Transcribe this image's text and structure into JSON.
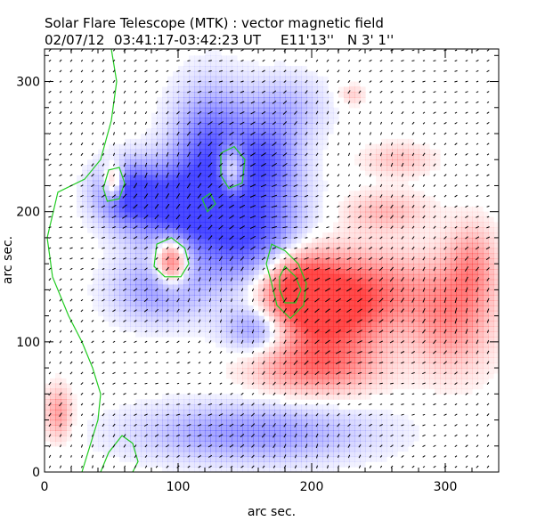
{
  "chart_data": {
    "type": "heatmap",
    "title": "Solar Flare Telescope (MTK) : vector magnetic field",
    "subtitle": {
      "date": "02/07/12",
      "time_range": "03:41:17-03:42:23 UT",
      "longitude": "E11'13''",
      "latitude": "N 3' 1''"
    },
    "xlabel": "arc sec.",
    "ylabel": "arc sec.",
    "xlim": [
      0,
      340
    ],
    "ylim": [
      0,
      325
    ],
    "x_ticks": [
      0,
      100,
      200,
      300
    ],
    "y_ticks": [
      0,
      100,
      200,
      300
    ],
    "x_minor_step": 20,
    "y_minor_step": 20,
    "grid": false,
    "colors": {
      "positive_polarity": "#ff2a2a",
      "negative_polarity": "#2a2aff",
      "contour": "#22cc22",
      "vector": "#000000",
      "background": "#ffffff"
    },
    "regions": [
      {
        "polarity": "negative",
        "cx": 150,
        "cy": 185,
        "rx": 40,
        "ry": 40,
        "strength": 1.0
      },
      {
        "polarity": "negative",
        "cx": 95,
        "cy": 205,
        "rx": 35,
        "ry": 30,
        "strength": 0.95
      },
      {
        "polarity": "negative",
        "cx": 125,
        "cy": 250,
        "rx": 28,
        "ry": 45,
        "strength": 0.8
      },
      {
        "polarity": "negative",
        "cx": 60,
        "cy": 215,
        "rx": 22,
        "ry": 22,
        "strength": 0.85
      },
      {
        "polarity": "negative",
        "cx": 165,
        "cy": 240,
        "rx": 25,
        "ry": 30,
        "strength": 0.7
      },
      {
        "polarity": "negative",
        "cx": 85,
        "cy": 140,
        "rx": 35,
        "ry": 25,
        "strength": 0.5
      },
      {
        "polarity": "negative",
        "cx": 160,
        "cy": 110,
        "rx": 25,
        "ry": 18,
        "strength": 0.6
      },
      {
        "polarity": "negative",
        "cx": 155,
        "cy": 30,
        "rx": 85,
        "ry": 22,
        "strength": 0.55
      },
      {
        "polarity": "negative",
        "cx": 180,
        "cy": 280,
        "rx": 30,
        "ry": 25,
        "strength": 0.35
      },
      {
        "polarity": "positive",
        "cx": 190,
        "cy": 140,
        "rx": 30,
        "ry": 30,
        "strength": 1.0
      },
      {
        "polarity": "positive",
        "cx": 215,
        "cy": 120,
        "rx": 40,
        "ry": 38,
        "strength": 0.8
      },
      {
        "polarity": "positive",
        "cx": 250,
        "cy": 140,
        "rx": 40,
        "ry": 30,
        "strength": 0.5
      },
      {
        "polarity": "positive",
        "cx": 305,
        "cy": 120,
        "rx": 30,
        "ry": 40,
        "strength": 0.6
      },
      {
        "polarity": "positive",
        "cx": 320,
        "cy": 160,
        "rx": 18,
        "ry": 30,
        "strength": 0.45
      },
      {
        "polarity": "positive",
        "cx": 200,
        "cy": 80,
        "rx": 45,
        "ry": 20,
        "strength": 0.55
      },
      {
        "polarity": "positive",
        "cx": 95,
        "cy": 162,
        "rx": 12,
        "ry": 18,
        "strength": 1.0
      },
      {
        "polarity": "positive",
        "cx": 140,
        "cy": 232,
        "rx": 10,
        "ry": 20,
        "strength": 0.85
      },
      {
        "polarity": "positive",
        "cx": 52,
        "cy": 222,
        "rx": 8,
        "ry": 14,
        "strength": 0.9
      },
      {
        "polarity": "positive",
        "cx": 255,
        "cy": 200,
        "rx": 30,
        "ry": 15,
        "strength": 0.35
      },
      {
        "polarity": "positive",
        "cx": 265,
        "cy": 240,
        "rx": 25,
        "ry": 12,
        "strength": 0.3
      },
      {
        "polarity": "positive",
        "cx": 10,
        "cy": 45,
        "rx": 10,
        "ry": 20,
        "strength": 0.5
      },
      {
        "polarity": "positive",
        "cx": 230,
        "cy": 290,
        "rx": 10,
        "ry": 8,
        "strength": 0.25
      }
    ],
    "contours": [
      {
        "level": "outer",
        "points": [
          [
            170,
            175
          ],
          [
            180,
            170
          ],
          [
            190,
            160
          ],
          [
            196,
            145
          ],
          [
            194,
            128
          ],
          [
            184,
            118
          ],
          [
            174,
            128
          ],
          [
            170,
            145
          ],
          [
            166,
            160
          ]
        ]
      },
      {
        "level": "inner",
        "points": [
          [
            180,
            158
          ],
          [
            188,
            150
          ],
          [
            192,
            140
          ],
          [
            188,
            130
          ],
          [
            180,
            130
          ],
          [
            176,
            140
          ],
          [
            176,
            150
          ]
        ]
      },
      {
        "level": "outer",
        "points": [
          [
            84,
            175
          ],
          [
            95,
            180
          ],
          [
            105,
            172
          ],
          [
            108,
            160
          ],
          [
            102,
            150
          ],
          [
            90,
            150
          ],
          [
            82,
            158
          ]
        ]
      },
      {
        "level": "outer",
        "points": [
          [
            44,
            218
          ],
          [
            48,
            232
          ],
          [
            56,
            234
          ],
          [
            60,
            222
          ],
          [
            56,
            210
          ],
          [
            47,
            208
          ]
        ]
      },
      {
        "level": "outer",
        "points": [
          [
            132,
            245
          ],
          [
            142,
            250
          ],
          [
            150,
            240
          ],
          [
            148,
            222
          ],
          [
            138,
            218
          ],
          [
            132,
            228
          ]
        ]
      },
      {
        "level": "outer",
        "points": [
          [
            118,
            210
          ],
          [
            124,
            214
          ],
          [
            128,
            206
          ],
          [
            122,
            200
          ]
        ]
      },
      {
        "level": "lane",
        "open": true,
        "points": [
          [
            50,
            325
          ],
          [
            54,
            300
          ],
          [
            50,
            270
          ],
          [
            42,
            240
          ],
          [
            30,
            225
          ],
          [
            10,
            215
          ],
          [
            2,
            180
          ],
          [
            6,
            150
          ],
          [
            18,
            120
          ],
          [
            28,
            100
          ],
          [
            36,
            80
          ],
          [
            42,
            60
          ],
          [
            40,
            40
          ],
          [
            34,
            20
          ],
          [
            28,
            0
          ]
        ]
      },
      {
        "level": "lane",
        "open": true,
        "points": [
          [
            42,
            0
          ],
          [
            48,
            15
          ],
          [
            58,
            28
          ],
          [
            66,
            22
          ],
          [
            70,
            8
          ],
          [
            66,
            0
          ]
        ]
      }
    ]
  }
}
